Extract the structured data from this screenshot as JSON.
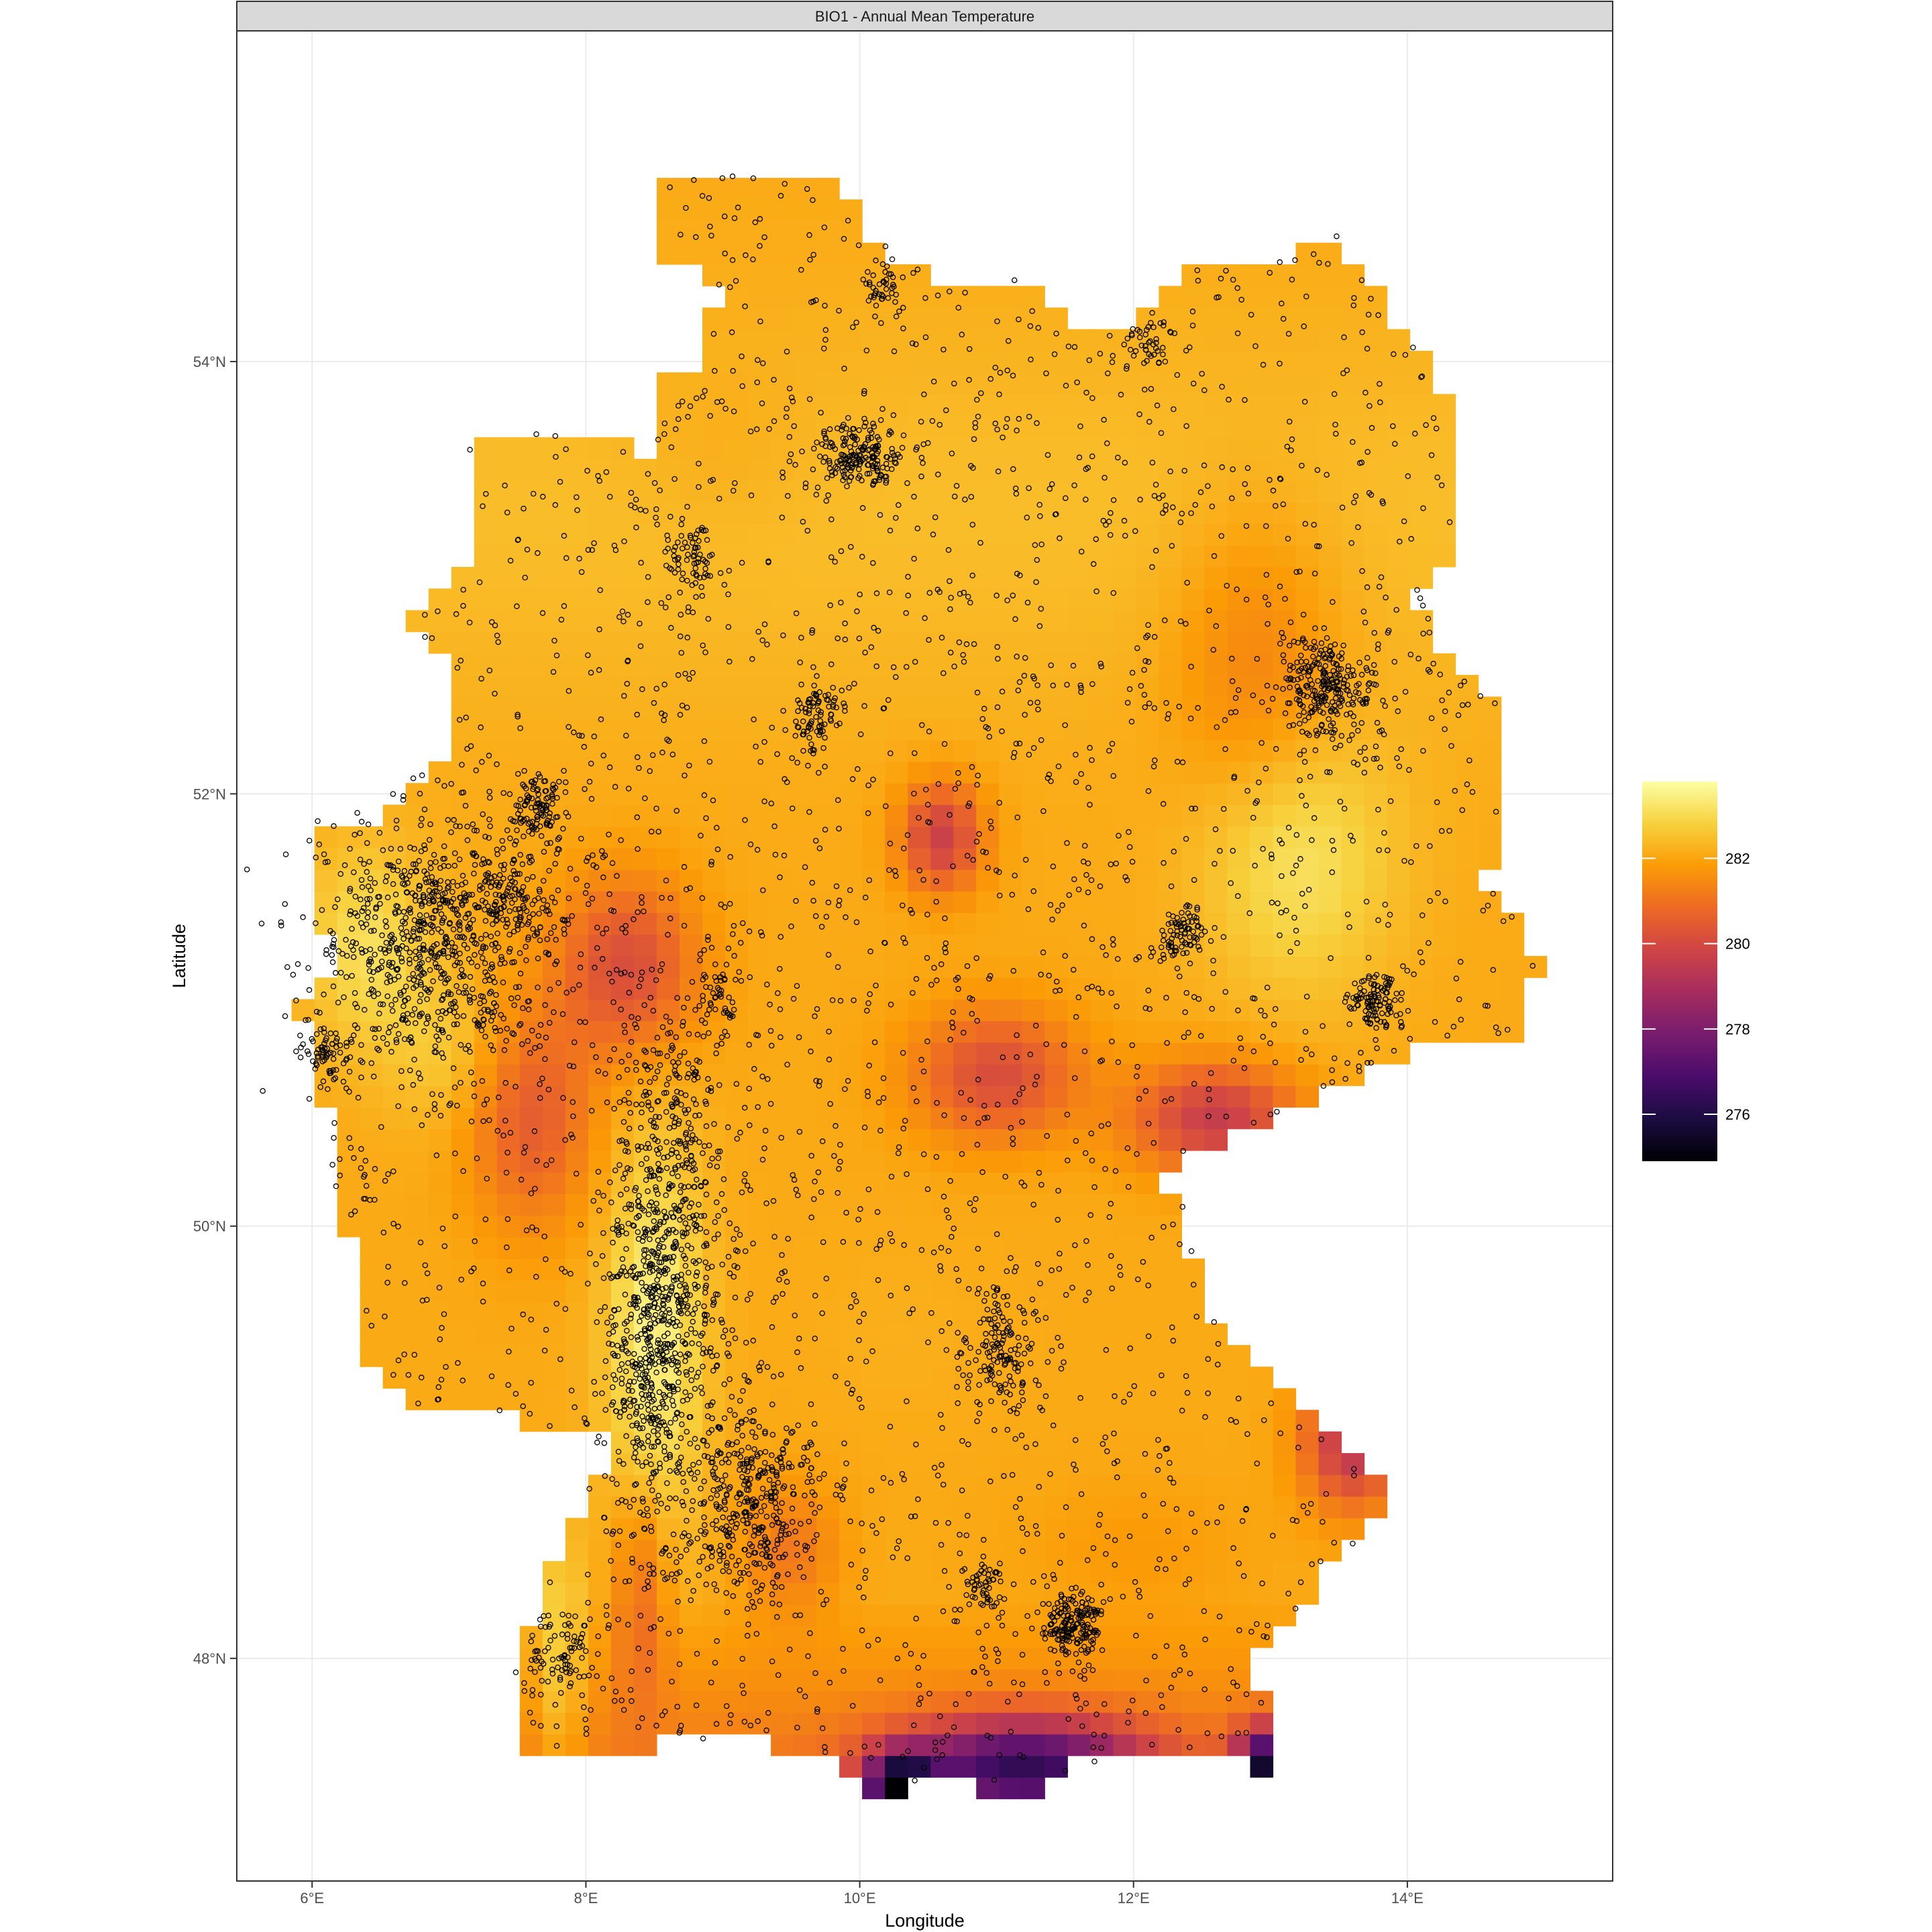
{
  "chart_data": {
    "type": "heatmap",
    "title": "BIO1 - Annual Mean Temperature",
    "xlabel": "Longitude",
    "ylabel": "Latitude",
    "xlim": [
      5.45,
      15.5
    ],
    "ylim": [
      46.97,
      55.53
    ],
    "x_ticks": [
      {
        "value": 6,
        "label": "6°E"
      },
      {
        "value": 8,
        "label": "8°E"
      },
      {
        "value": 10,
        "label": "10°E"
      },
      {
        "value": 12,
        "label": "12°E"
      },
      {
        "value": 14,
        "label": "14°E"
      }
    ],
    "y_ticks": [
      {
        "value": 48,
        "label": "48°N"
      },
      {
        "value": 50,
        "label": "50°N"
      },
      {
        "value": 52,
        "label": "52°N"
      },
      {
        "value": 54,
        "label": "54°N"
      }
    ],
    "grid": true,
    "legend": {
      "placement": "right",
      "min": 274.9,
      "max": 283.8,
      "ticks": [
        {
          "value": 276,
          "label": "276"
        },
        {
          "value": 278,
          "label": "278"
        },
        {
          "value": 280,
          "label": "280"
        },
        {
          "value": 282,
          "label": "282"
        }
      ],
      "palette": [
        "#000004",
        "#1b0c41",
        "#4a0c6b",
        "#781c6d",
        "#a52c60",
        "#cf4446",
        "#ed6925",
        "#fb9b06",
        "#f7d13d",
        "#fcffa4"
      ]
    },
    "colors": {
      "panel_border": "#333333",
      "strip_fill": "#d9d9d9",
      "grid": "#ebebeb",
      "points": "#000000"
    }
  }
}
